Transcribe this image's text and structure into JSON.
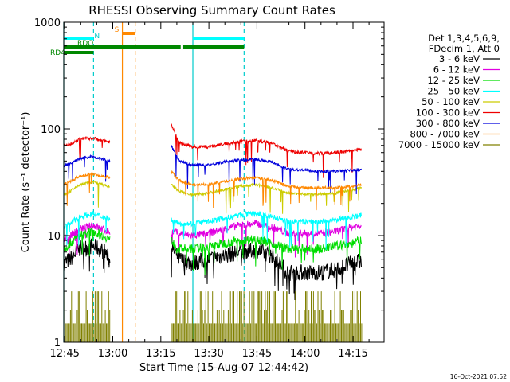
{
  "chart_data": {
    "type": "line",
    "title": "RHESSI Observing Summary Count Rates",
    "xlabel": "Start Time (15-Aug-07 12:44:42)",
    "ylabel": "Count Rate (s⁻¹ detector⁻¹)",
    "x_range_minutes": [
      0,
      100
    ],
    "x_ticks": [
      {
        "label": "12:45",
        "t": 0.3
      },
      {
        "label": "13:00",
        "t": 15.3
      },
      {
        "label": "13:15",
        "t": 30.3
      },
      {
        "label": "13:30",
        "t": 45.3
      },
      {
        "label": "13:45",
        "t": 60.3
      },
      {
        "label": "14:00",
        "t": 75.3
      },
      {
        "label": "14:15",
        "t": 90.3
      }
    ],
    "y_scale": "log",
    "y_range": [
      1,
      1000
    ],
    "y_ticks": [
      {
        "label": "1",
        "v": 1
      },
      {
        "label": "10",
        "v": 10
      },
      {
        "label": "100",
        "v": 100
      },
      {
        "label": "1000",
        "v": 1000
      }
    ],
    "legend_header": [
      "Det 1,3,4,5,6,9,",
      "FDecim 1, Att 0"
    ],
    "series": [
      {
        "name": "3 - 6 keV",
        "color": "#000000",
        "base": [
          [
            0,
            5.5
          ],
          [
            2,
            6
          ],
          [
            5,
            7.5
          ],
          [
            9,
            8
          ],
          [
            13,
            7
          ],
          [
            14,
            6
          ],
          [
            14.5,
            5.5
          ]
        ],
        "base2": [
          [
            33.5,
            8
          ],
          [
            36,
            6
          ],
          [
            40,
            5.5
          ],
          [
            45,
            6
          ],
          [
            50,
            6.5
          ],
          [
            55,
            7
          ],
          [
            60,
            7.3
          ],
          [
            65,
            6.5
          ],
          [
            70,
            4.5
          ],
          [
            75,
            4.5
          ],
          [
            80,
            4.5
          ],
          [
            85,
            4.8
          ],
          [
            90,
            5.5
          ],
          [
            93,
            5.8
          ]
        ],
        "noise": 0.18,
        "dip": 0.04
      },
      {
        "name": "6 - 12 keV",
        "color": "#e100e1",
        "base": [
          [
            0,
            9
          ],
          [
            2,
            10
          ],
          [
            5,
            11.5
          ],
          [
            9,
            12.5
          ],
          [
            12,
            11.5
          ],
          [
            14,
            11
          ],
          [
            14.5,
            10.5
          ]
        ],
        "base2": [
          [
            33.5,
            11
          ],
          [
            36,
            10.5
          ],
          [
            40,
            10
          ],
          [
            45,
            10.5
          ],
          [
            50,
            11.5
          ],
          [
            55,
            12.5
          ],
          [
            60,
            13
          ],
          [
            65,
            12
          ],
          [
            70,
            10.5
          ],
          [
            75,
            10.5
          ],
          [
            80,
            10.5
          ],
          [
            85,
            11
          ],
          [
            90,
            12
          ],
          [
            93,
            12.5
          ]
        ],
        "noise": 0.08,
        "dip": 0.03
      },
      {
        "name": "12 - 25 keV",
        "color": "#00dd00",
        "base": [
          [
            0,
            7.5
          ],
          [
            2,
            8.5
          ],
          [
            5,
            10
          ],
          [
            9,
            11
          ],
          [
            12,
            10
          ],
          [
            14,
            9.5
          ],
          [
            14.5,
            9
          ]
        ],
        "base2": [
          [
            33.5,
            9
          ],
          [
            36,
            7.5
          ],
          [
            40,
            7.5
          ],
          [
            45,
            7.8
          ],
          [
            50,
            8.5
          ],
          [
            55,
            9
          ],
          [
            60,
            9.3
          ],
          [
            65,
            8.5
          ],
          [
            70,
            7.5
          ],
          [
            75,
            7.5
          ],
          [
            80,
            7.5
          ],
          [
            85,
            8
          ],
          [
            90,
            8.5
          ],
          [
            93,
            9
          ]
        ],
        "noise": 0.1,
        "dip": 0.03
      },
      {
        "name": "25 - 50 keV",
        "color": "#00ffff",
        "base": [
          [
            0,
            12
          ],
          [
            2,
            13
          ],
          [
            5,
            15
          ],
          [
            9,
            16
          ],
          [
            12,
            15
          ],
          [
            14,
            14.5
          ],
          [
            14.5,
            14
          ]
        ],
        "base2": [
          [
            33.5,
            14
          ],
          [
            36,
            13
          ],
          [
            40,
            13
          ],
          [
            45,
            13.5
          ],
          [
            50,
            14.5
          ],
          [
            55,
            15.5
          ],
          [
            60,
            16
          ],
          [
            65,
            15
          ],
          [
            70,
            13.5
          ],
          [
            75,
            13.5
          ],
          [
            80,
            13.5
          ],
          [
            85,
            14
          ],
          [
            90,
            15
          ],
          [
            93,
            15.5
          ]
        ],
        "noise": 0.06,
        "dip": 0.03
      },
      {
        "name": "50 - 100 keV",
        "color": "#cccc00",
        "base": [
          [
            0,
            24
          ],
          [
            2,
            26
          ],
          [
            5,
            30
          ],
          [
            9,
            32
          ],
          [
            12,
            30
          ],
          [
            14,
            29
          ],
          [
            14.5,
            28
          ]
        ],
        "base2": [
          [
            33.5,
            30
          ],
          [
            36,
            26
          ],
          [
            40,
            24
          ],
          [
            45,
            25
          ],
          [
            50,
            27
          ],
          [
            55,
            29
          ],
          [
            60,
            30
          ],
          [
            65,
            28
          ],
          [
            70,
            25
          ],
          [
            75,
            24.5
          ],
          [
            80,
            24.5
          ],
          [
            85,
            25
          ],
          [
            90,
            27
          ],
          [
            93,
            28
          ]
        ],
        "noise": 0.03,
        "dip": 0.03
      },
      {
        "name": "100 - 300 keV",
        "color": "#ee0000",
        "base": [
          [
            0,
            70
          ],
          [
            2,
            72
          ],
          [
            5,
            80
          ],
          [
            9,
            82
          ],
          [
            12,
            78
          ],
          [
            14,
            76
          ],
          [
            14.5,
            75
          ]
        ],
        "base2": [
          [
            33.5,
            110
          ],
          [
            36,
            75
          ],
          [
            40,
            68
          ],
          [
            45,
            68
          ],
          [
            50,
            72
          ],
          [
            55,
            76
          ],
          [
            60,
            78
          ],
          [
            65,
            74
          ],
          [
            70,
            62
          ],
          [
            75,
            60
          ],
          [
            80,
            59
          ],
          [
            85,
            60
          ],
          [
            90,
            62
          ],
          [
            93,
            64
          ]
        ],
        "noise": 0.035,
        "dip": 0.04
      },
      {
        "name": "300 - 800 keV",
        "color": "#0000dd",
        "base": [
          [
            0,
            45
          ],
          [
            2,
            47
          ],
          [
            5,
            53
          ],
          [
            9,
            55
          ],
          [
            12,
            52
          ],
          [
            14,
            50
          ],
          [
            14.5,
            49
          ]
        ],
        "base2": [
          [
            33.5,
            70
          ],
          [
            36,
            50
          ],
          [
            40,
            46
          ],
          [
            45,
            46
          ],
          [
            50,
            49
          ],
          [
            55,
            51
          ],
          [
            60,
            52
          ],
          [
            65,
            49
          ],
          [
            70,
            42
          ],
          [
            75,
            41
          ],
          [
            80,
            40
          ],
          [
            85,
            40
          ],
          [
            90,
            41
          ],
          [
            93,
            42
          ]
        ],
        "noise": 0.03,
        "dip": 0.04
      },
      {
        "name": "800 - 7000 keV",
        "color": "#ff8800",
        "base": [
          [
            0,
            30
          ],
          [
            2,
            32
          ],
          [
            5,
            36
          ],
          [
            9,
            38
          ],
          [
            12,
            36
          ],
          [
            14,
            35
          ],
          [
            14.5,
            34
          ]
        ],
        "base2": [
          [
            33.5,
            40
          ],
          [
            36,
            33
          ],
          [
            40,
            30
          ],
          [
            45,
            30
          ],
          [
            50,
            32
          ],
          [
            55,
            34
          ],
          [
            60,
            35
          ],
          [
            65,
            33
          ],
          [
            70,
            29
          ],
          [
            75,
            28
          ],
          [
            80,
            28
          ],
          [
            85,
            28
          ],
          [
            90,
            29
          ],
          [
            93,
            30
          ]
        ],
        "noise": 0.03,
        "dip": 0.03
      },
      {
        "name": "7000 - 15000 keV",
        "color": "#808000",
        "base": [
          [
            0,
            1.5
          ],
          [
            14.5,
            1.5
          ]
        ],
        "base2": [
          [
            33.5,
            1.5
          ],
          [
            93,
            1.5
          ]
        ],
        "noise": 0,
        "dip": 0
      }
    ],
    "gap": [
      14.5,
      33.5
    ],
    "vertical_lines": [
      {
        "t": 0,
        "color": "#00cccc",
        "style": "solid"
      },
      {
        "t": 9.3,
        "color": "#00cccc",
        "style": "dashed"
      },
      {
        "t": 18.3,
        "color": "#ff8800",
        "style": "solid"
      },
      {
        "t": 22.3,
        "color": "#ff8800",
        "style": "dashed"
      },
      {
        "t": 40.3,
        "color": "#00cccc",
        "style": "solid"
      },
      {
        "t": 56.3,
        "color": "#00cccc",
        "style": "dashed"
      }
    ],
    "flag_bars": [
      {
        "label": "N",
        "color": "#00ffff",
        "row": 0,
        "segments": [
          [
            0,
            9.3
          ],
          [
            40.3,
            56.3
          ]
        ]
      },
      {
        "label": "S",
        "color": "#ff8800",
        "row": -1,
        "segments": [
          [
            18.3,
            22.3
          ]
        ]
      },
      {
        "label": "RDO",
        "color": "#008800",
        "row": 1,
        "segments": [
          [
            0,
            36.5
          ],
          [
            37.3,
            56.3
          ]
        ]
      },
      {
        "label": "RD4",
        "color": "#008800",
        "row": 2,
        "segments": [
          [
            0,
            9.3
          ]
        ]
      }
    ],
    "timestamp": "16-Oct-2021 07:52"
  }
}
